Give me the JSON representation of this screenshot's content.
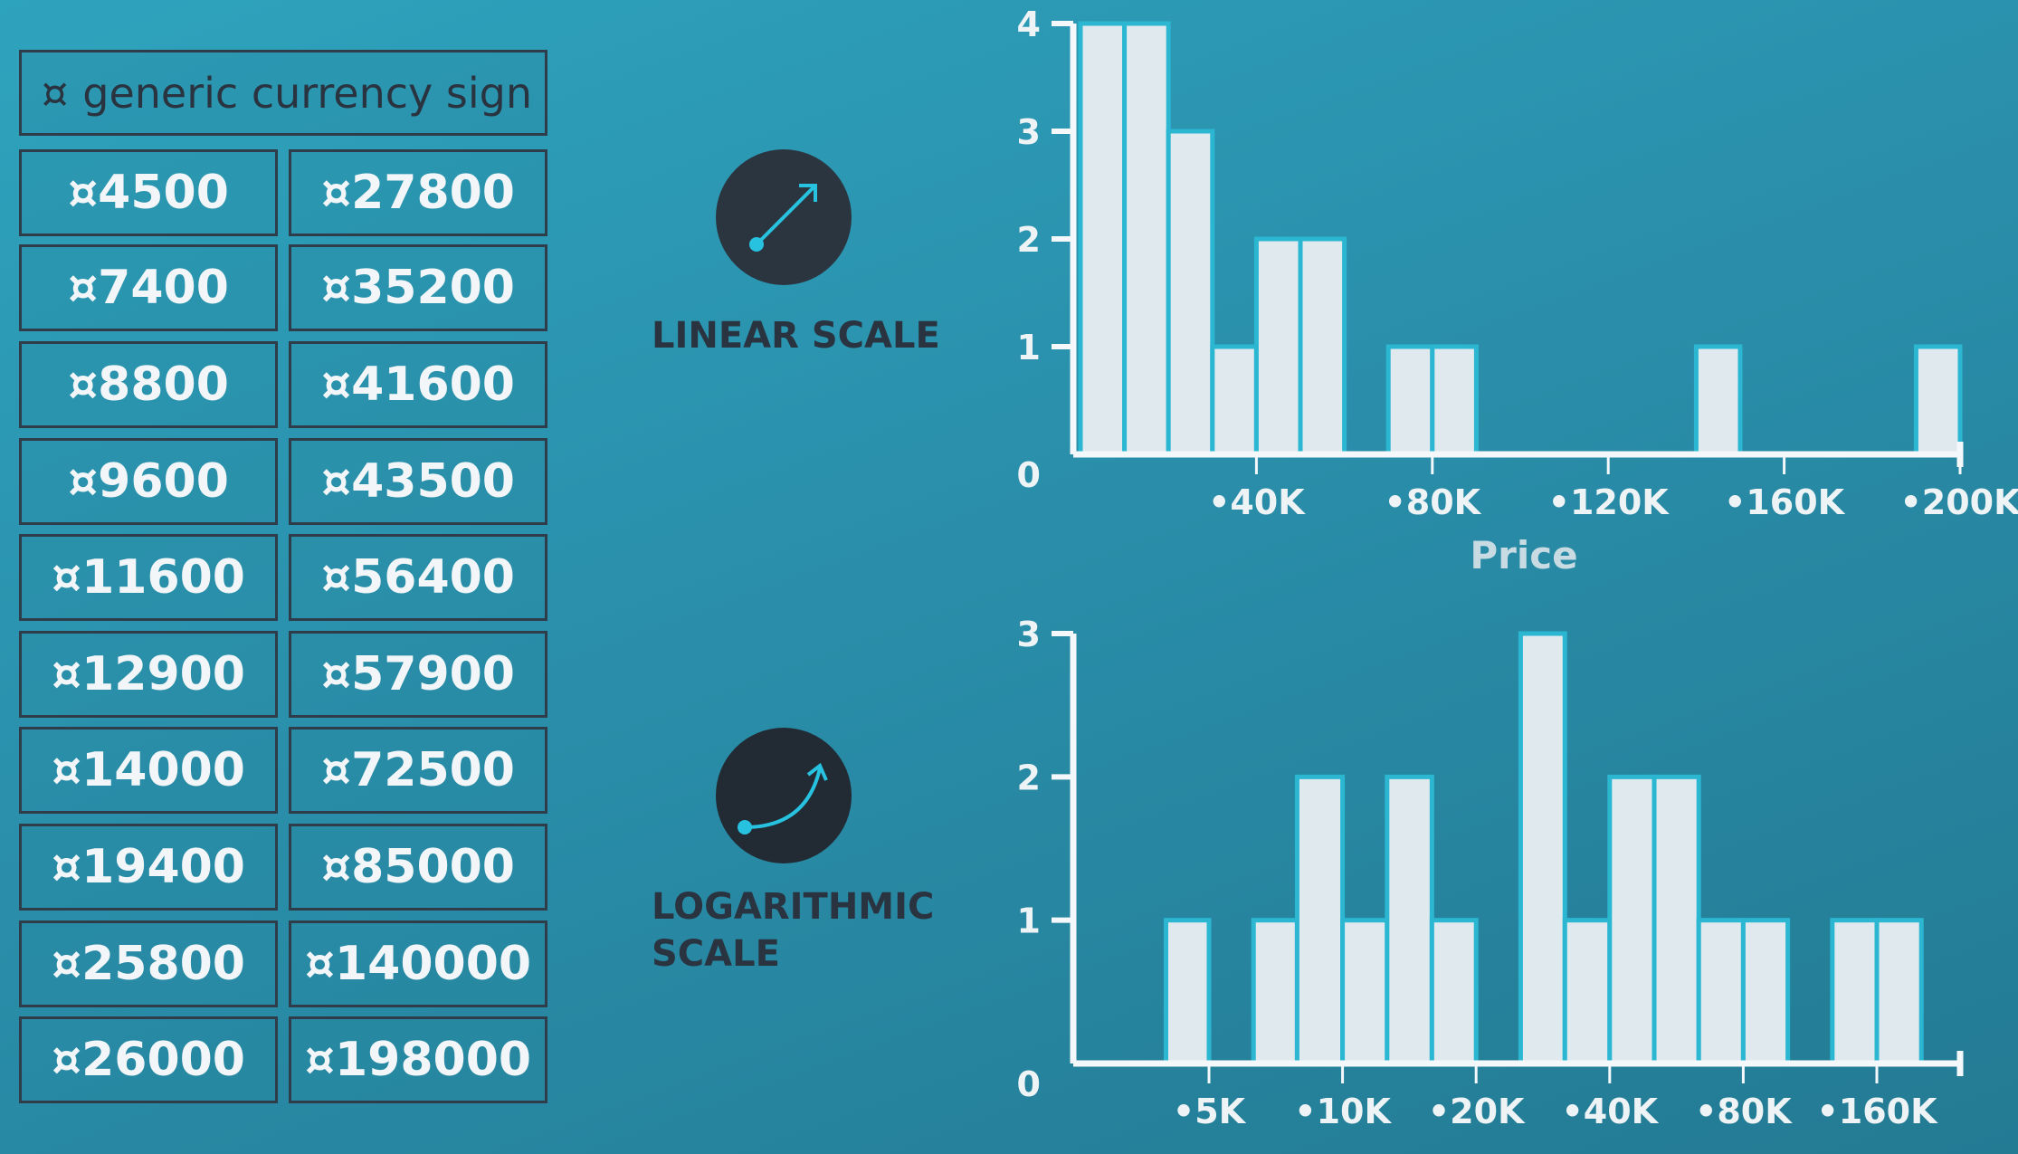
{
  "table": {
    "header_symbol": "¤",
    "header": "generic currency sign",
    "left_column": [
      "¤4500",
      "¤7400",
      "¤8800",
      "¤9600",
      "¤11600",
      "¤12900",
      "¤14000",
      "¤19400",
      "¤25800",
      "¤26000"
    ],
    "right_column": [
      "¤27800",
      "¤35200",
      "¤41600",
      "¤43500",
      "¤56400",
      "¤57900",
      "¤72500",
      "¤85000",
      "¤140000",
      "¤198000"
    ]
  },
  "scales": {
    "linear_label": "LINEAR SCALE",
    "log_label_line1": "LOGARITHMIC",
    "log_label_line2": "SCALE"
  },
  "colors": {
    "bar_fill": "#dfe9ee",
    "bar_stroke": "#2bb6d2",
    "axis": "#f5f8fa",
    "icon_bg": "#2b3540",
    "icon_line": "#27c2e0"
  },
  "icons": [
    "linear-arrow-icon",
    "curved-arrow-icon"
  ],
  "chart_data": [
    {
      "type": "bar",
      "xlabel": "Price",
      "ylabel": "",
      "x_range": [
        0,
        200000
      ],
      "ylim": [
        0,
        4
      ],
      "yticks": [
        "0",
        "1",
        "2",
        "3",
        "4"
      ],
      "xticks": [
        "•40K",
        "•80K",
        "•120K",
        "•160K",
        "•200K"
      ],
      "xtick_values": [
        40000,
        80000,
        120000,
        160000,
        200000
      ],
      "bin_width": 10000,
      "bins": [
        {
          "x0": 0,
          "x1": 10000,
          "count": 4
        },
        {
          "x0": 10000,
          "x1": 20000,
          "count": 4
        },
        {
          "x0": 20000,
          "x1": 30000,
          "count": 3
        },
        {
          "x0": 30000,
          "x1": 40000,
          "count": 1
        },
        {
          "x0": 40000,
          "x1": 50000,
          "count": 2
        },
        {
          "x0": 50000,
          "x1": 60000,
          "count": 2
        },
        {
          "x0": 70000,
          "x1": 80000,
          "count": 1
        },
        {
          "x0": 80000,
          "x1": 90000,
          "count": 1
        },
        {
          "x0": 140000,
          "x1": 150000,
          "count": 1
        },
        {
          "x0": 190000,
          "x1": 200000,
          "count": 1
        }
      ]
    },
    {
      "type": "bar",
      "xlabel": "",
      "ylabel": "",
      "x_scale": "log",
      "x_range": [
        2000,
        250000
      ],
      "ylim": [
        0,
        3
      ],
      "yticks": [
        "0",
        "1",
        "2",
        "3"
      ],
      "xticks": [
        "•5K",
        "•10K",
        "•20K",
        "•40K",
        "•80K",
        "•160K"
      ],
      "xtick_values": [
        5000,
        10000,
        20000,
        40000,
        80000,
        160000
      ],
      "bins": [
        {
          "x0": 4000,
          "x1": 5000,
          "count": 1
        },
        {
          "x0": 6300,
          "x1": 7900,
          "count": 1
        },
        {
          "x0": 7900,
          "x1": 10000,
          "count": 2
        },
        {
          "x0": 10000,
          "x1": 12600,
          "count": 1
        },
        {
          "x0": 12600,
          "x1": 15900,
          "count": 2
        },
        {
          "x0": 15900,
          "x1": 20000,
          "count": 1
        },
        {
          "x0": 25200,
          "x1": 31700,
          "count": 3
        },
        {
          "x0": 31700,
          "x1": 40000,
          "count": 1
        },
        {
          "x0": 40000,
          "x1": 50400,
          "count": 2
        },
        {
          "x0": 50400,
          "x1": 63500,
          "count": 2
        },
        {
          "x0": 63500,
          "x1": 80000,
          "count": 1
        },
        {
          "x0": 80000,
          "x1": 100800,
          "count": 1
        },
        {
          "x0": 127000,
          "x1": 160000,
          "count": 1
        },
        {
          "x0": 160000,
          "x1": 201600,
          "count": 1
        }
      ]
    }
  ]
}
